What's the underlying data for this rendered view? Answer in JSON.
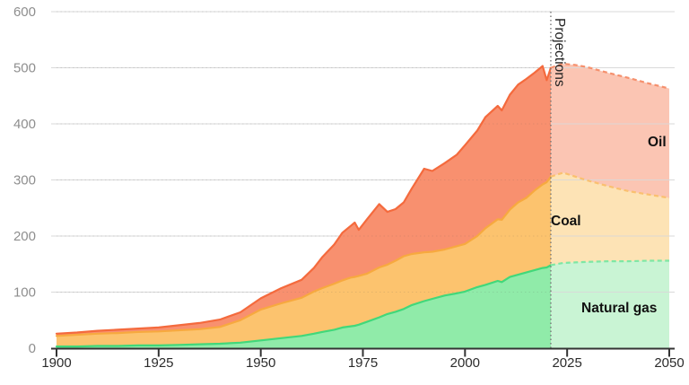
{
  "chart_data": {
    "type": "area",
    "stacked": true,
    "title": "",
    "x_axis": {
      "range": [
        1900,
        2050
      ],
      "ticks": [
        1900,
        1925,
        1950,
        1975,
        2000,
        2025,
        2050
      ]
    },
    "y_axis": {
      "range": [
        0,
        600
      ],
      "ticks": [
        0,
        100,
        200,
        300,
        400,
        500,
        600
      ],
      "gridlines": true
    },
    "projection": {
      "start_year": 2021,
      "label": "Projections",
      "divider_style": "dotted"
    },
    "years_historical": [
      1900,
      1905,
      1910,
      1915,
      1920,
      1925,
      1930,
      1935,
      1940,
      1945,
      1950,
      1955,
      1960,
      1963,
      1965,
      1968,
      1970,
      1972,
      1973,
      1974,
      1976,
      1979,
      1981,
      1983,
      1985,
      1987,
      1990,
      1992,
      1995,
      1998,
      2000,
      2003,
      2005,
      2008,
      2009,
      2011,
      2013,
      2015,
      2017,
      2019,
      2020,
      2021
    ],
    "years_projection": [
      2021,
      2024,
      2027,
      2030,
      2035,
      2040,
      2045,
      2050
    ],
    "series": [
      {
        "name": "Natural gas",
        "label": "Natural gas",
        "fill": "#90eba9",
        "line": "#41d87a",
        "projection_fill": "#c9f4d4",
        "projection_line": "#7ee7a4",
        "values_historical": [
          3,
          3,
          4,
          4,
          5,
          5,
          6,
          7,
          8,
          10,
          14,
          18,
          22,
          26,
          29,
          33,
          37,
          39,
          40,
          42,
          47,
          55,
          61,
          65,
          70,
          77,
          84,
          88,
          94,
          98,
          101,
          109,
          113,
          120,
          118,
          127,
          131,
          135,
          139,
          143,
          144,
          148
        ],
        "values_projection": [
          148,
          152,
          153,
          154,
          155,
          155,
          156,
          156
        ]
      },
      {
        "name": "Coal",
        "label": "Coal",
        "fill": "#fcc36e",
        "line": "#f7a93f",
        "projection_fill": "#fde3b5",
        "projection_line": "#fac06f",
        "values_historical": [
          19,
          21,
          22,
          23,
          24,
          25,
          26,
          27,
          30,
          40,
          55,
          62,
          68,
          75,
          78,
          82,
          84,
          87,
          87,
          87,
          86,
          89,
          88,
          91,
          94,
          91,
          87,
          84,
          82,
          84,
          85,
          91,
          101,
          110,
          111,
          120,
          129,
          133,
          142,
          149,
          152,
          158
        ],
        "values_projection": [
          158,
          161,
          153,
          145,
          134,
          125,
          118,
          112
        ]
      },
      {
        "name": "Oil",
        "label": "Oil",
        "fill": "#f8906f",
        "line": "#f46a3d",
        "projection_fill": "#fbc5b3",
        "projection_line": "#f5906d",
        "values_historical": [
          4,
          4,
          5,
          6,
          6,
          7,
          9,
          11,
          13,
          14,
          20,
          27,
          32,
          42,
          55,
          70,
          85,
          92,
          97,
          82,
          97,
          113,
          94,
          92,
          96,
          117,
          149,
          144,
          154,
          163,
          176,
          188,
          198,
          202,
          195,
          205,
          210,
          212,
          210,
          211,
          182,
          194
        ],
        "values_projection": [
          194,
          194,
          199,
          202,
          202,
          202,
          198,
          195
        ]
      }
    ]
  },
  "colors": {
    "grid": "#d9d9d9",
    "axis": "#333333",
    "x_tick_label": "#2b2b2b",
    "y_tick_label": "#8e8e8e",
    "annotation": "#111111",
    "projection_label": "#222222",
    "divider": "#777777"
  }
}
